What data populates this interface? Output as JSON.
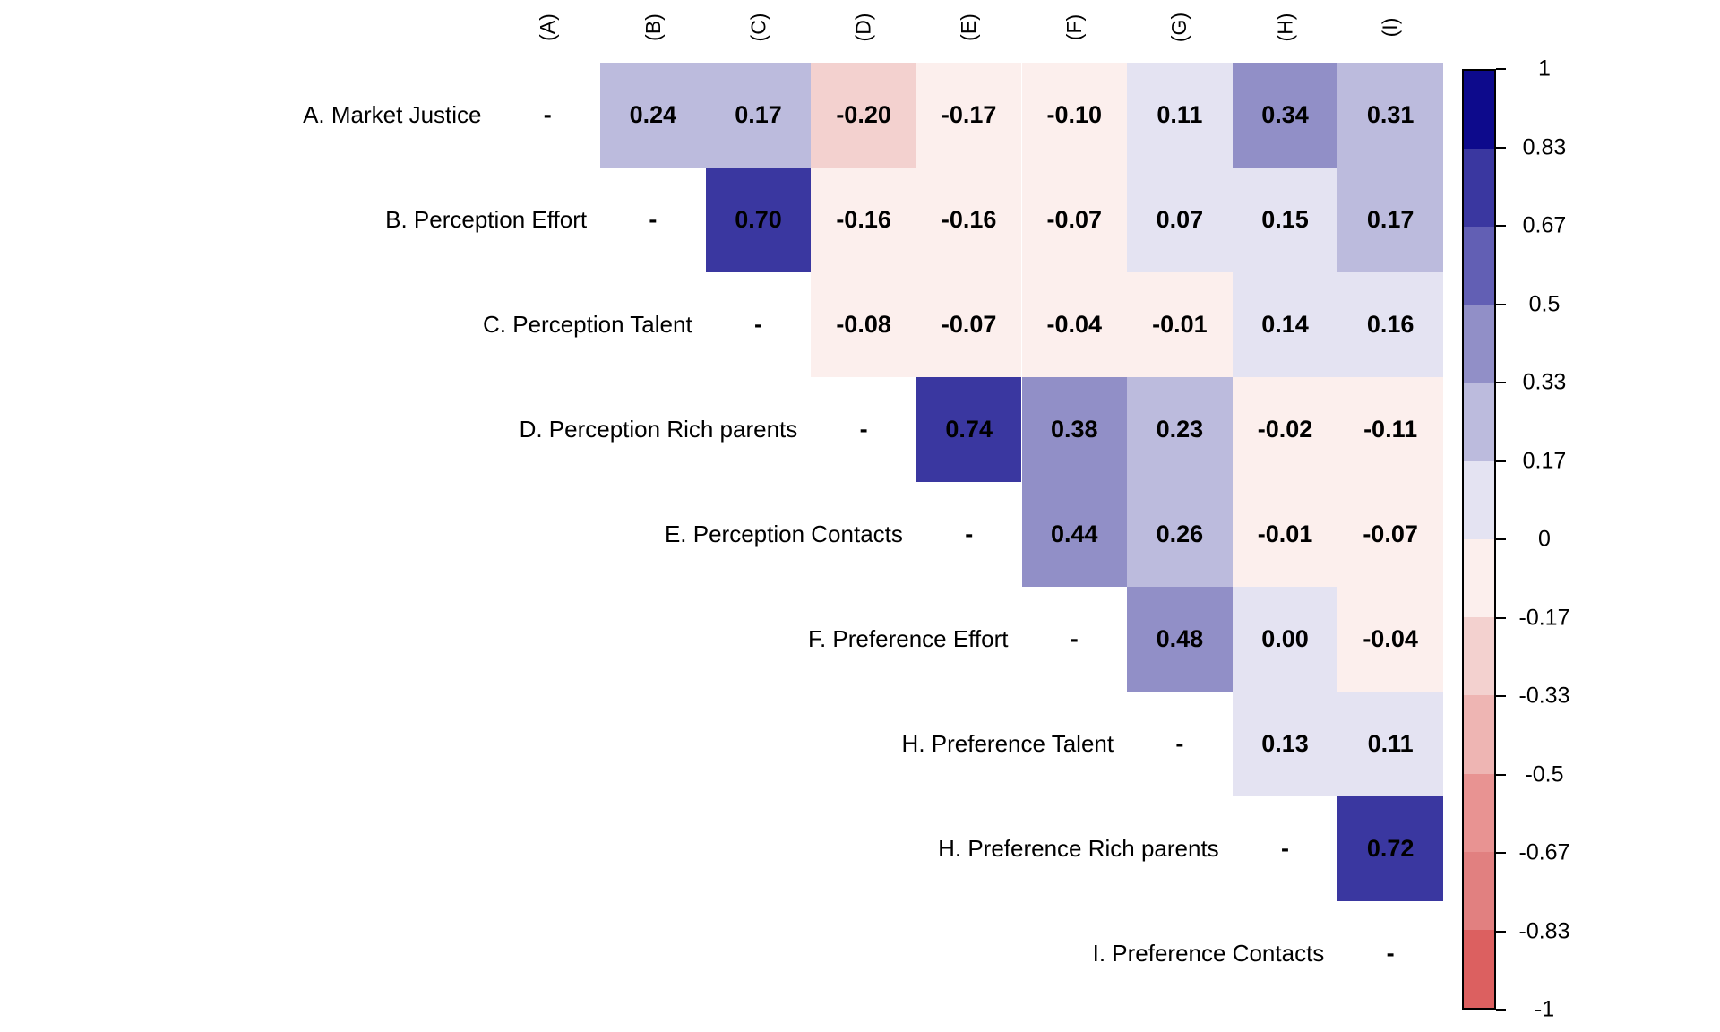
{
  "figure": {
    "background": "#ffffff",
    "description": "Upper-triangular correlation matrix heatmap with discrete red-white-blue color scale and right-side colorbar legend"
  },
  "chart_data": {
    "type": "heatmap",
    "subtype": "correlation-matrix-upper-triangle",
    "title": "",
    "xlabel": "",
    "ylabel": "",
    "grid": false,
    "legend_position": "right",
    "column_headers": [
      "(A)",
      "(B)",
      "(C)",
      "(D)",
      "(E)",
      "(F)",
      "(G)",
      "(H)",
      "(I)"
    ],
    "row_labels": [
      "A. Market Justice",
      "B. Perception Effort",
      "C. Perception Talent",
      "D. Perception Rich parents",
      "E. Perception Contacts",
      "F. Preference Effort",
      "H. Preference Talent",
      "H. Preference Rich parents",
      "I. Preference Contacts"
    ],
    "diagonal_marker": "-",
    "values": [
      [
        null,
        "0.24",
        "0.17",
        "-0.20",
        "-0.17",
        "-0.10",
        "0.11",
        "0.34",
        "0.31"
      ],
      [
        null,
        null,
        "0.70",
        "-0.16",
        "-0.16",
        "-0.07",
        "0.07",
        "0.15",
        "0.17"
      ],
      [
        null,
        null,
        null,
        "-0.08",
        "-0.07",
        "-0.04",
        "-0.01",
        "0.14",
        "0.16"
      ],
      [
        null,
        null,
        null,
        null,
        "0.74",
        "0.38",
        "0.23",
        "-0.02",
        "-0.11"
      ],
      [
        null,
        null,
        null,
        null,
        null,
        "0.44",
        "0.26",
        "-0.01",
        "-0.07"
      ],
      [
        null,
        null,
        null,
        null,
        null,
        null,
        "0.48",
        "0.00",
        "-0.04"
      ],
      [
        null,
        null,
        null,
        null,
        null,
        null,
        null,
        "0.13",
        "0.11"
      ],
      [
        null,
        null,
        null,
        null,
        null,
        null,
        null,
        null,
        "0.72"
      ],
      [
        null,
        null,
        null,
        null,
        null,
        null,
        null,
        null,
        null
      ]
    ],
    "value_text_color": "#000000",
    "colorbar": {
      "range": [
        -1,
        1
      ],
      "tick_labels": [
        "1",
        "0.83",
        "0.67",
        "0.5",
        "0.33",
        "0.17",
        "0",
        "-0.17",
        "-0.33",
        "-0.5",
        "-0.67",
        "-0.83",
        "-1"
      ],
      "palette_top_to_bottom": [
        "#0d0a8c",
        "#3a37a0",
        "#625fb4",
        "#918fc7",
        "#bcbbdd",
        "#e4e3f2",
        "#fcefed",
        "#f3d1cf",
        "#eeb5b3",
        "#e89392",
        "#e18080",
        "#dc6060"
      ]
    }
  }
}
